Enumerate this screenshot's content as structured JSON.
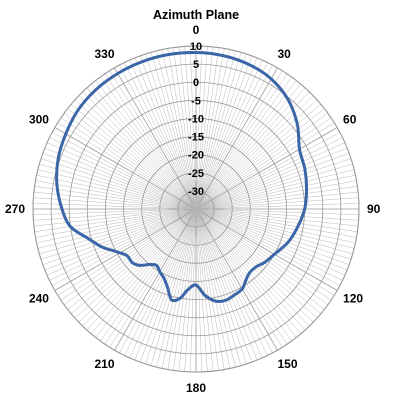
{
  "chart_data": {
    "type": "polar-line",
    "title": "Azimuth Plane",
    "radial_ticks": [
      10,
      5,
      0,
      -5,
      -10,
      -15,
      -20,
      -25,
      -30
    ],
    "radial_range": [
      -35,
      10
    ],
    "angle_ticks": [
      "0",
      "30",
      "60",
      "90",
      "120",
      "150",
      "180",
      "210",
      "240",
      "270",
      "300",
      "330"
    ],
    "angular_spokes_every_deg": 2,
    "angle_direction": "clockwise from top",
    "grid": true,
    "series": [
      {
        "color": "#3a66a8",
        "angles": [
          0,
          10,
          20,
          30,
          40,
          50,
          60,
          70,
          80,
          90,
          100,
          110,
          120,
          128,
          134,
          140,
          145,
          150,
          156,
          162,
          168,
          174,
          180,
          186,
          190,
          195,
          200,
          205,
          210,
          215,
          220,
          225,
          230,
          236,
          242,
          248,
          255,
          262,
          270,
          280,
          290,
          300,
          310,
          320,
          330,
          340,
          350,
          360
        ],
        "values": [
          8.2,
          8,
          7.5,
          6.5,
          4.5,
          1.5,
          -2,
          -3,
          -4,
          -5,
          -6.5,
          -8,
          -10,
          -11,
          -12,
          -12,
          -11,
          -9.5,
          -9,
          -8.5,
          -9,
          -11,
          -14,
          -12.5,
          -10,
          -9,
          -12,
          -14,
          -15,
          -16,
          -15,
          -13,
          -12,
          -12,
          -10,
          -7,
          -4,
          0,
          2,
          4,
          5.5,
          6.5,
          7.5,
          8,
          8.2,
          8.3,
          8.3,
          8.2
        ]
      }
    ]
  }
}
